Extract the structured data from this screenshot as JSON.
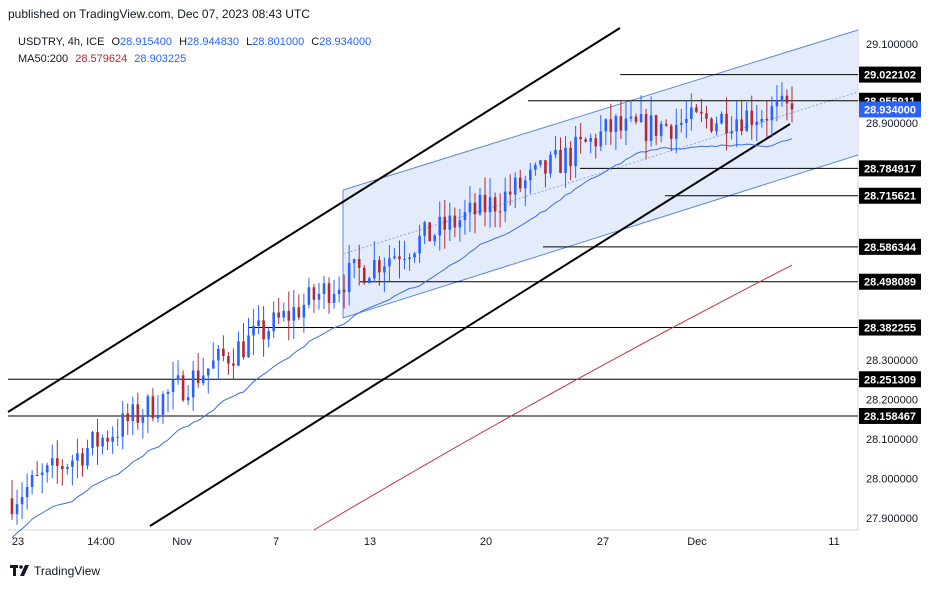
{
  "header": {
    "published": "published on TradingView.com, Dec 07, 2023 08:43 UTC"
  },
  "legend": {
    "symbol": "USDTRY, 4h, ICE",
    "open_label": "O",
    "open": "28.915400",
    "high_label": "H",
    "high": "28.944830",
    "low_label": "L",
    "low": "28.801000",
    "close_label": "C",
    "close": "28.934000",
    "ma_label": "MA50:200",
    "ma50": "28.579624",
    "ma200": "28.903225"
  },
  "footer": {
    "brand": "TradingView",
    "logo_icon": "tradingview-logo-icon"
  },
  "colors": {
    "up": "#2962ff",
    "down": "#b22833",
    "channel_fill": "#dbe6fb",
    "channel_line": "#5b8bd6",
    "ma50": "#3a6fd8",
    "ma200": "#c0363f",
    "level": "#000000"
  },
  "chart_data": {
    "type": "candlestick",
    "y_axis": {
      "min": 27.87,
      "max": 29.14,
      "ticks": [
        "29.100000",
        "28.900000",
        "28.300000",
        "28.200000",
        "28.100000",
        "28.000000",
        "27.900000"
      ]
    },
    "x_axis": {
      "ticks": [
        "23",
        "14:00",
        "Nov",
        "7",
        "13",
        "20",
        "27",
        "Dec",
        "11"
      ]
    },
    "price_labels": [
      {
        "value": 29.022102,
        "text": "29.022102"
      },
      {
        "value": 28.955911,
        "text": "28.955911"
      },
      {
        "value": 28.934,
        "text": "28.934000",
        "current": true
      },
      {
        "value": 28.784917,
        "text": "28.784917"
      },
      {
        "value": 28.715621,
        "text": "28.715621"
      },
      {
        "value": 28.586344,
        "text": "28.586344"
      },
      {
        "value": 28.498089,
        "text": "28.498089"
      },
      {
        "value": 28.382255,
        "text": "28.382255"
      },
      {
        "value": 28.251309,
        "text": "28.251309"
      },
      {
        "value": 28.158467,
        "text": "28.158467"
      }
    ],
    "series": [
      {
        "name": "USDTRY",
        "kind": "candles",
        "first_close": 27.95,
        "last_close": 28.934
      },
      {
        "name": "MA50",
        "value": 28.579624
      },
      {
        "name": "MA200",
        "value": 28.903225
      }
    ]
  }
}
